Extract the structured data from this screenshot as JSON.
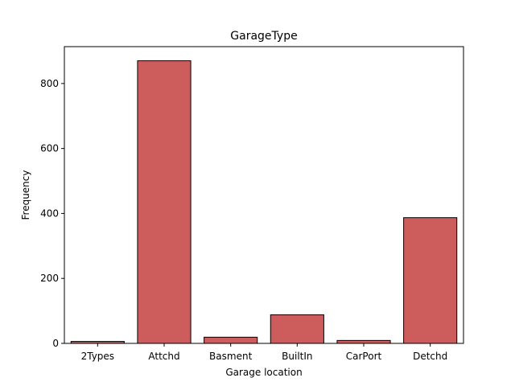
{
  "chart_data": {
    "type": "bar",
    "title": "GarageType",
    "xlabel": "Garage location",
    "ylabel": "Frequency",
    "categories": [
      "2Types",
      "Attchd",
      "Basment",
      "BuiltIn",
      "CarPort",
      "Detchd"
    ],
    "values": [
      6,
      870,
      19,
      88,
      9,
      387
    ],
    "ylim": [
      0,
      913.5
    ],
    "yticks": [
      0,
      200,
      400,
      600,
      800
    ],
    "bar_color": "#cd5c5c",
    "edge_color": "#000000",
    "grid": false,
    "legend": "none"
  }
}
